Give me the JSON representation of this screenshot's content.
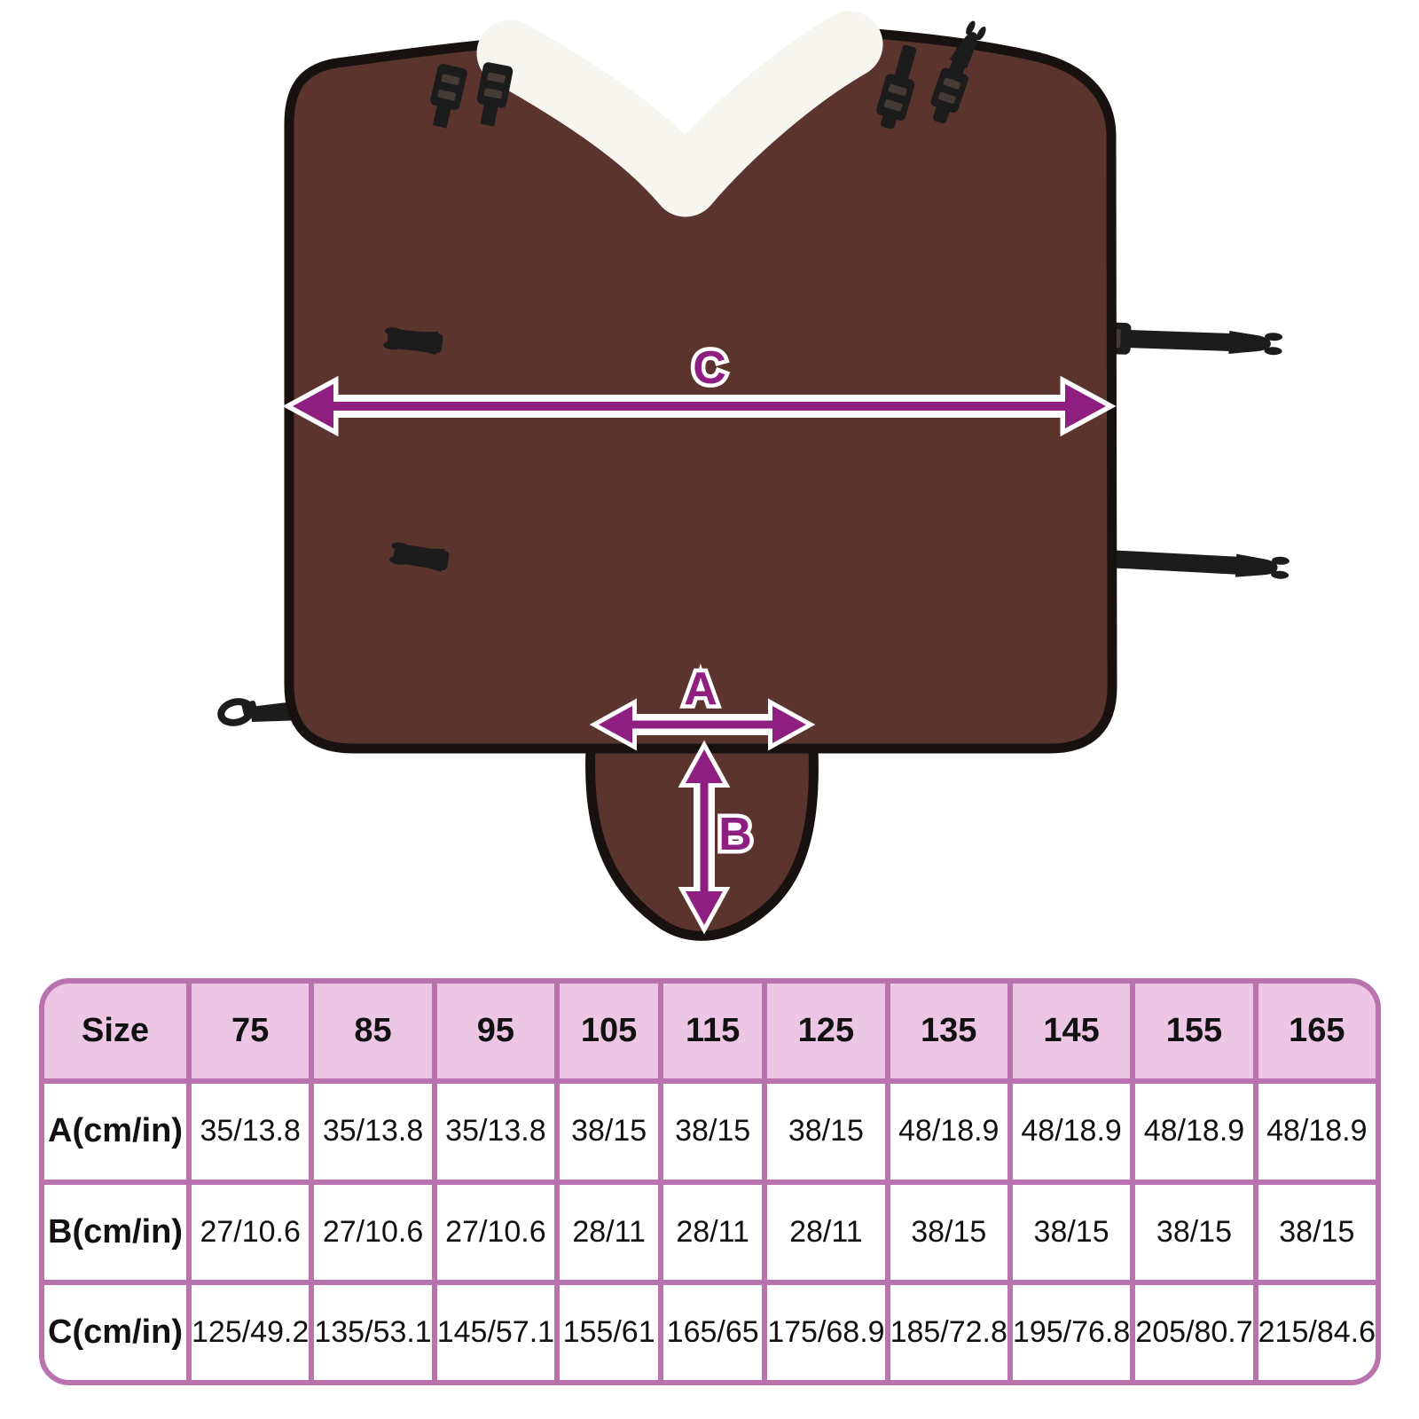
{
  "diagram": {
    "labels": {
      "a": "A",
      "b": "B",
      "c": "C"
    },
    "colors": {
      "blanket": "#5b342e",
      "binding": "#17120f",
      "fleece": "#f7f5ef",
      "arrow": "#8e1f81",
      "strap": "#1d1c1c",
      "slot": "#443a36"
    }
  },
  "table": {
    "header": [
      "Size",
      "75",
      "85",
      "95",
      "105",
      "115",
      "125",
      "135",
      "145",
      "155",
      "165"
    ],
    "rows": [
      {
        "label": "A(cm/in)",
        "values": [
          "35/13.8",
          "35/13.8",
          "35/13.8",
          "38/15",
          "38/15",
          "38/15",
          "48/18.9",
          "48/18.9",
          "48/18.9",
          "48/18.9"
        ]
      },
      {
        "label": "B(cm/in)",
        "values": [
          "27/10.6",
          "27/10.6",
          "27/10.6",
          "28/11",
          "28/11",
          "28/11",
          "38/15",
          "38/15",
          "38/15",
          "38/15"
        ]
      },
      {
        "label": "C(cm/in)",
        "values": [
          "125/49.2",
          "135/53.1",
          "145/57.1",
          "155/61",
          "165/65",
          "175/68.9",
          "185/72.8",
          "195/76.8",
          "205/80.7",
          "215/84.6"
        ]
      }
    ],
    "colors": {
      "border": "#b873ae",
      "header_bg": "#ecc6e4",
      "cell_bg": "#ffffff"
    }
  }
}
